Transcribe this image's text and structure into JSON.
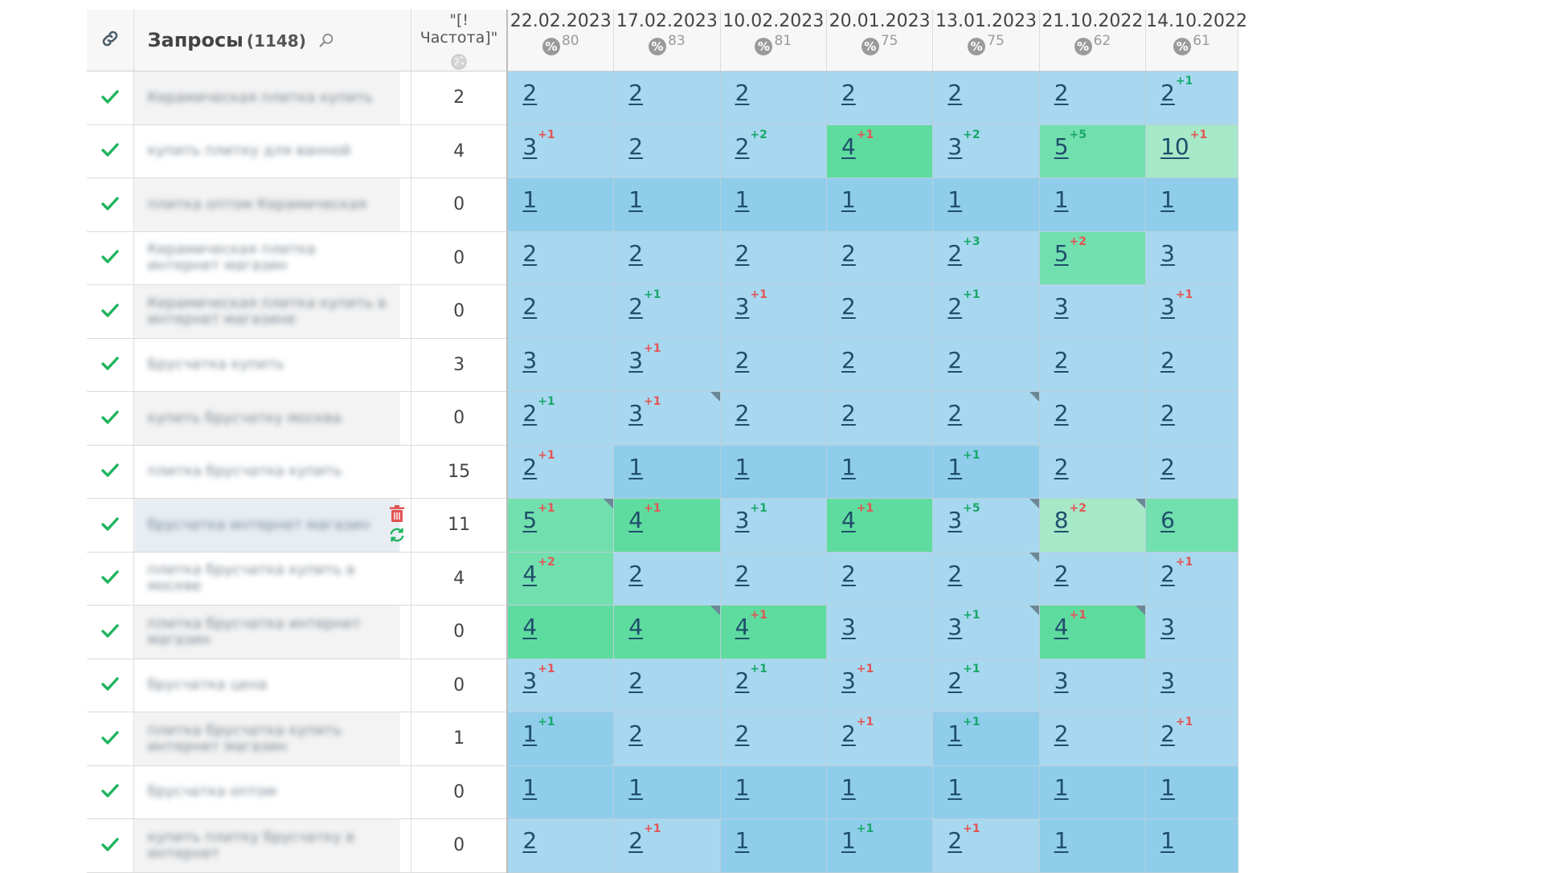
{
  "header": {
    "link_icon": "link-icon",
    "queries_label": "Запросы",
    "queries_count": "(1148)",
    "search_icon": "search-icon",
    "freq_label": "\"[!Частота]\"",
    "freq_icon": "globe-icon"
  },
  "dates": [
    {
      "date": "22.02.2023",
      "pct": "80"
    },
    {
      "date": "17.02.2023",
      "pct": "83"
    },
    {
      "date": "10.02.2023",
      "pct": "81"
    },
    {
      "date": "20.01.2023",
      "pct": "75"
    },
    {
      "date": "13.01.2023",
      "pct": "75"
    },
    {
      "date": "21.10.2022",
      "pct": "62"
    },
    {
      "date": "14.10.2022",
      "pct": "61"
    }
  ],
  "row_tools": {
    "delete_icon": "trash-icon",
    "refresh_icon": "refresh-icon"
  },
  "colors": {
    "check": "#1fb45f",
    "cell_blue": "#a8d8ef",
    "cell_mid": "#8fcdeb",
    "cell_green": "#5edc9f",
    "cell_mint": "#a6e8c8",
    "delta_up": "#18a86b",
    "delta_down": "#e25555",
    "trash": "#e05353",
    "refresh": "#1fb45f"
  },
  "rows": [
    {
      "query": "Керамическая плитка купить",
      "freq": "2",
      "cells": [
        {
          "v": "2",
          "t": "blue"
        },
        {
          "v": "2",
          "t": "blue"
        },
        {
          "v": "2",
          "t": "blue"
        },
        {
          "v": "2",
          "t": "blue"
        },
        {
          "v": "2",
          "t": "blue"
        },
        {
          "v": "2",
          "t": "blue"
        },
        {
          "v": "2",
          "d": "+1",
          "dir": "up",
          "t": "blue"
        }
      ]
    },
    {
      "query": "купить плитку для ванной",
      "freq": "4",
      "cells": [
        {
          "v": "3",
          "d": "+1",
          "dir": "down",
          "t": "blue"
        },
        {
          "v": "2",
          "t": "blue"
        },
        {
          "v": "2",
          "d": "+2",
          "dir": "up",
          "t": "blue"
        },
        {
          "v": "4",
          "d": "+1",
          "dir": "down",
          "t": "green"
        },
        {
          "v": "3",
          "d": "+2",
          "dir": "up",
          "t": "blue"
        },
        {
          "v": "5",
          "d": "+5",
          "dir": "up",
          "t": "green2"
        },
        {
          "v": "10",
          "d": "+1",
          "dir": "down",
          "t": "mint"
        }
      ]
    },
    {
      "query": "плитка оптом Керамическая",
      "freq": "0",
      "cells": [
        {
          "v": "1",
          "t": "mid"
        },
        {
          "v": "1",
          "t": "mid"
        },
        {
          "v": "1",
          "t": "mid"
        },
        {
          "v": "1",
          "t": "mid"
        },
        {
          "v": "1",
          "t": "mid"
        },
        {
          "v": "1",
          "t": "mid"
        },
        {
          "v": "1",
          "t": "mid"
        }
      ]
    },
    {
      "query": "Керамическая плитка интернет магазин",
      "freq": "0",
      "cells": [
        {
          "v": "2",
          "t": "blue"
        },
        {
          "v": "2",
          "t": "blue"
        },
        {
          "v": "2",
          "t": "blue"
        },
        {
          "v": "2",
          "t": "blue"
        },
        {
          "v": "2",
          "d": "+3",
          "dir": "up",
          "t": "blue"
        },
        {
          "v": "5",
          "d": "+2",
          "dir": "down",
          "t": "green2"
        },
        {
          "v": "3",
          "t": "blue"
        }
      ]
    },
    {
      "query": "Керамическая плитка купить в интернет магазине",
      "freq": "0",
      "cells": [
        {
          "v": "2",
          "t": "blue"
        },
        {
          "v": "2",
          "d": "+1",
          "dir": "up",
          "t": "blue"
        },
        {
          "v": "3",
          "d": "+1",
          "dir": "down",
          "t": "blue"
        },
        {
          "v": "2",
          "t": "blue"
        },
        {
          "v": "2",
          "d": "+1",
          "dir": "up",
          "t": "blue"
        },
        {
          "v": "3",
          "t": "blue"
        },
        {
          "v": "3",
          "d": "+1",
          "dir": "down",
          "t": "blue"
        }
      ]
    },
    {
      "query": "Брусчатка купить",
      "freq": "3",
      "cells": [
        {
          "v": "3",
          "t": "blue"
        },
        {
          "v": "3",
          "d": "+1",
          "dir": "down",
          "t": "blue"
        },
        {
          "v": "2",
          "t": "blue"
        },
        {
          "v": "2",
          "t": "blue"
        },
        {
          "v": "2",
          "t": "blue"
        },
        {
          "v": "2",
          "t": "blue"
        },
        {
          "v": "2",
          "t": "blue"
        }
      ]
    },
    {
      "query": "купить брусчатку москва",
      "freq": "0",
      "cells": [
        {
          "v": "2",
          "d": "+1",
          "dir": "up",
          "t": "blue"
        },
        {
          "v": "3",
          "d": "+1",
          "dir": "down",
          "t": "blue",
          "corner": true
        },
        {
          "v": "2",
          "t": "blue"
        },
        {
          "v": "2",
          "t": "blue"
        },
        {
          "v": "2",
          "t": "blue",
          "corner": true
        },
        {
          "v": "2",
          "t": "blue"
        },
        {
          "v": "2",
          "t": "blue"
        }
      ]
    },
    {
      "query": "плитка брусчатка купить",
      "freq": "15",
      "cells": [
        {
          "v": "2",
          "d": "+1",
          "dir": "down",
          "t": "blue"
        },
        {
          "v": "1",
          "t": "mid"
        },
        {
          "v": "1",
          "t": "mid"
        },
        {
          "v": "1",
          "t": "mid"
        },
        {
          "v": "1",
          "d": "+1",
          "dir": "up",
          "t": "mid"
        },
        {
          "v": "2",
          "t": "blue"
        },
        {
          "v": "2",
          "t": "blue"
        }
      ]
    },
    {
      "query": "брусчатка интернет магазин",
      "freq": "11",
      "hl": true,
      "cells": [
        {
          "v": "5",
          "d": "+1",
          "dir": "down",
          "t": "green2",
          "corner": true
        },
        {
          "v": "4",
          "d": "+1",
          "dir": "down",
          "t": "green"
        },
        {
          "v": "3",
          "d": "+1",
          "dir": "up",
          "t": "blue"
        },
        {
          "v": "4",
          "d": "+1",
          "dir": "down",
          "t": "green"
        },
        {
          "v": "3",
          "d": "+5",
          "dir": "up",
          "t": "blue",
          "corner": true
        },
        {
          "v": "8",
          "d": "+2",
          "dir": "down",
          "t": "mint",
          "corner": true
        },
        {
          "v": "6",
          "t": "green2"
        }
      ]
    },
    {
      "query": "плитка брусчатка купить в москве",
      "freq": "4",
      "cells": [
        {
          "v": "4",
          "d": "+2",
          "dir": "down",
          "t": "green2"
        },
        {
          "v": "2",
          "t": "blue"
        },
        {
          "v": "2",
          "t": "blue"
        },
        {
          "v": "2",
          "t": "blue"
        },
        {
          "v": "2",
          "t": "blue",
          "corner": true
        },
        {
          "v": "2",
          "t": "blue"
        },
        {
          "v": "2",
          "d": "+1",
          "dir": "down",
          "t": "blue"
        }
      ]
    },
    {
      "query": "плитка брусчатка интернет магазин",
      "freq": "0",
      "cells": [
        {
          "v": "4",
          "t": "green"
        },
        {
          "v": "4",
          "t": "green",
          "corner": true
        },
        {
          "v": "4",
          "d": "+1",
          "dir": "down",
          "t": "green"
        },
        {
          "v": "3",
          "t": "blue"
        },
        {
          "v": "3",
          "d": "+1",
          "dir": "up",
          "t": "blue",
          "corner": true
        },
        {
          "v": "4",
          "d": "+1",
          "dir": "down",
          "t": "green",
          "corner": true
        },
        {
          "v": "3",
          "t": "blue"
        }
      ]
    },
    {
      "query": "брусчатка цена",
      "freq": "0",
      "cells": [
        {
          "v": "3",
          "d": "+1",
          "dir": "down",
          "t": "blue"
        },
        {
          "v": "2",
          "t": "blue"
        },
        {
          "v": "2",
          "d": "+1",
          "dir": "up",
          "t": "blue"
        },
        {
          "v": "3",
          "d": "+1",
          "dir": "down",
          "t": "blue"
        },
        {
          "v": "2",
          "d": "+1",
          "dir": "up",
          "t": "blue"
        },
        {
          "v": "3",
          "t": "blue"
        },
        {
          "v": "3",
          "t": "blue"
        }
      ]
    },
    {
      "query": "плитка брусчатка купить интернет магазин",
      "freq": "1",
      "cells": [
        {
          "v": "1",
          "d": "+1",
          "dir": "up",
          "t": "mid"
        },
        {
          "v": "2",
          "t": "blue"
        },
        {
          "v": "2",
          "t": "blue"
        },
        {
          "v": "2",
          "d": "+1",
          "dir": "down",
          "t": "blue"
        },
        {
          "v": "1",
          "d": "+1",
          "dir": "up",
          "t": "mid"
        },
        {
          "v": "2",
          "t": "blue"
        },
        {
          "v": "2",
          "d": "+1",
          "dir": "down",
          "t": "blue"
        }
      ]
    },
    {
      "query": "брусчатка оптом",
      "freq": "0",
      "cells": [
        {
          "v": "1",
          "t": "mid"
        },
        {
          "v": "1",
          "t": "mid"
        },
        {
          "v": "1",
          "t": "mid"
        },
        {
          "v": "1",
          "t": "mid"
        },
        {
          "v": "1",
          "t": "mid"
        },
        {
          "v": "1",
          "t": "mid"
        },
        {
          "v": "1",
          "t": "mid"
        }
      ]
    },
    {
      "query": "купить плитку брусчатку в интернет",
      "freq": "0",
      "cells": [
        {
          "v": "2",
          "t": "blue"
        },
        {
          "v": "2",
          "d": "+1",
          "dir": "down",
          "t": "blue"
        },
        {
          "v": "1",
          "t": "mid"
        },
        {
          "v": "1",
          "d": "+1",
          "dir": "up",
          "t": "mid"
        },
        {
          "v": "2",
          "d": "+1",
          "dir": "down",
          "t": "blue"
        },
        {
          "v": "1",
          "t": "mid"
        },
        {
          "v": "1",
          "t": "mid"
        }
      ]
    }
  ]
}
